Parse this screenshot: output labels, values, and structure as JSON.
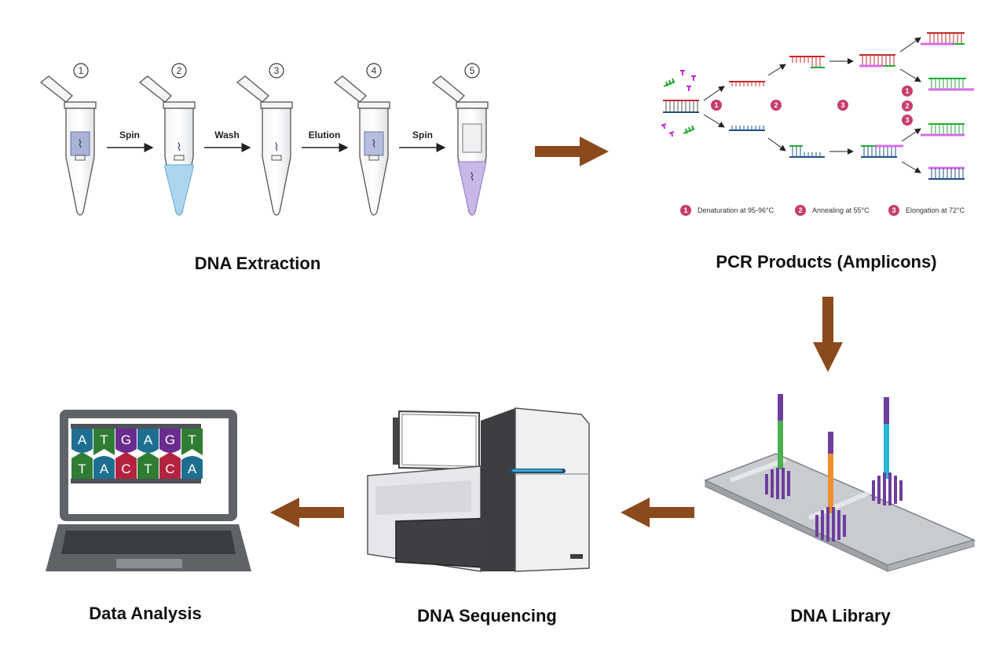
{
  "stages": {
    "extraction": "DNA Extraction",
    "pcr": "PCR Products (Amplicons)",
    "library": "DNA Library",
    "sequencing": "DNA Sequencing",
    "analysis": "Data Analysis"
  },
  "extraction_steps": {
    "tube_numbers": [
      "1",
      "2",
      "3",
      "4",
      "5"
    ],
    "labels": [
      "Spin",
      "Wash",
      "Elution",
      "Spin"
    ]
  },
  "pcr": {
    "step_numbers": [
      "1",
      "2",
      "3"
    ],
    "side_numbers": [
      "1",
      "2",
      "3"
    ],
    "legend": [
      {
        "num": "1",
        "text": "Denaturation at 95-96°C"
      },
      {
        "num": "2",
        "text": "Annealing at 55°C"
      },
      {
        "num": "3",
        "text": "Elongation at 72°C"
      }
    ]
  },
  "analysis": {
    "top_bases": [
      "A",
      "T",
      "G",
      "A",
      "G",
      "T"
    ],
    "bottom_bases": [
      "T",
      "A",
      "C",
      "T",
      "C",
      "A"
    ]
  },
  "colors": {
    "arrow": "#8b4a1c",
    "pcr_marker": "#c73e6b",
    "base_A": "#1e6f8f",
    "base_T": "#2e7d32",
    "base_G": "#6a2c8e",
    "base_C": "#b3233f"
  }
}
